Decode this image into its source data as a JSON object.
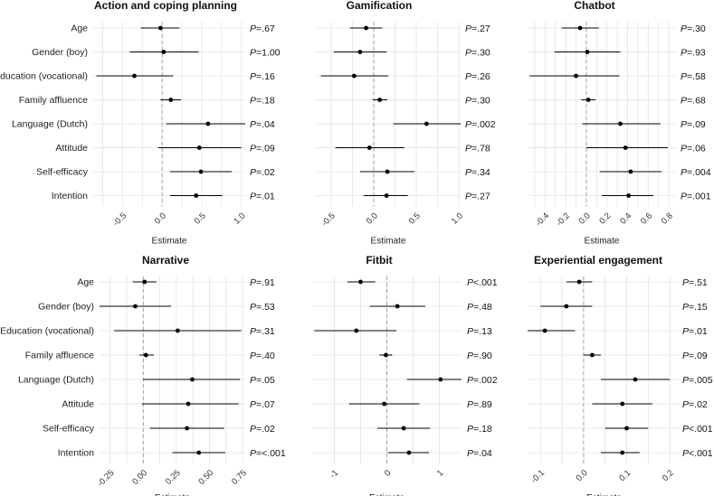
{
  "chart_data": [
    {
      "type": "forest",
      "title": "Action and coping planning",
      "xlabel": "Estimate",
      "xlim": [
        -0.87,
        1.05
      ],
      "xticks": [
        -0.5,
        0.0,
        0.5,
        1.0
      ],
      "xtick_labels": [
        "-0.5",
        "0.0",
        "0.5",
        "1.0"
      ],
      "rows": [
        {
          "label": "Age",
          "estimate": -0.02,
          "lower": -0.27,
          "upper": 0.22,
          "p": "P=.67"
        },
        {
          "label": "Gender (boy)",
          "estimate": 0.02,
          "lower": -0.41,
          "upper": 0.46,
          "p": "P=1.00"
        },
        {
          "label": "Education (vocational)",
          "estimate": -0.35,
          "lower": -0.83,
          "upper": 0.14,
          "p": "P=.16"
        },
        {
          "label": "Family affluence",
          "estimate": 0.11,
          "lower": -0.02,
          "upper": 0.24,
          "p": "P=.18"
        },
        {
          "label": "Language (Dutch)",
          "estimate": 0.58,
          "lower": 0.05,
          "upper": 1.1,
          "p": "P=.04"
        },
        {
          "label": "Attitude",
          "estimate": 0.47,
          "lower": -0.05,
          "upper": 1.0,
          "p": "P=.09"
        },
        {
          "label": "Self-efficacy",
          "estimate": 0.49,
          "lower": 0.1,
          "upper": 0.88,
          "p": "P=.02"
        },
        {
          "label": "Intention",
          "estimate": 0.43,
          "lower": 0.1,
          "upper": 0.76,
          "p": "P=.01"
        }
      ]
    },
    {
      "type": "forest",
      "title": "Gamification",
      "xlabel": "Estimate",
      "xlim": [
        -0.68,
        1.02
      ],
      "xticks": [
        -0.5,
        0.0,
        0.5,
        1.0
      ],
      "xtick_labels": [
        "-0.5",
        "0.0",
        "0.5",
        "1.0"
      ],
      "rows": [
        {
          "label": "Age",
          "estimate": -0.09,
          "lower": -0.28,
          "upper": 0.1,
          "p": "P=.27"
        },
        {
          "label": "Gender (boy)",
          "estimate": -0.16,
          "lower": -0.47,
          "upper": 0.15,
          "p": "P=.30"
        },
        {
          "label": "Education (vocational)",
          "estimate": -0.23,
          "lower": -0.62,
          "upper": 0.17,
          "p": "P=.26"
        },
        {
          "label": "Family affluence",
          "estimate": 0.07,
          "lower": -0.01,
          "upper": 0.16,
          "p": "P=.30"
        },
        {
          "label": "Language (Dutch)",
          "estimate": 0.62,
          "lower": 0.23,
          "upper": 1.02,
          "p": "P=.002"
        },
        {
          "label": "Attitude",
          "estimate": -0.05,
          "lower": -0.45,
          "upper": 0.36,
          "p": "P=.78"
        },
        {
          "label": "Self-efficacy",
          "estimate": 0.16,
          "lower": -0.16,
          "upper": 0.48,
          "p": "P=.34"
        },
        {
          "label": "Intention",
          "estimate": 0.15,
          "lower": -0.12,
          "upper": 0.4,
          "p": "P=.27"
        }
      ]
    },
    {
      "type": "forest",
      "title": "Chatbot",
      "xlabel": "Estimate",
      "xlim": [
        -0.57,
        0.87
      ],
      "xticks": [
        -0.4,
        -0.2,
        0.0,
        0.2,
        0.4,
        0.6,
        0.8
      ],
      "xtick_labels": [
        "-0.4",
        "-0.2",
        "0.0",
        "0.2",
        "0.4",
        "0.6",
        "0.8"
      ],
      "rows": [
        {
          "label": "Age",
          "estimate": -0.06,
          "lower": -0.24,
          "upper": 0.12,
          "p": "P=.30"
        },
        {
          "label": "Gender (boy)",
          "estimate": 0.01,
          "lower": -0.31,
          "upper": 0.33,
          "p": "P=.93"
        },
        {
          "label": "Education (vocational)",
          "estimate": -0.1,
          "lower": -0.55,
          "upper": 0.32,
          "p": "P=.58"
        },
        {
          "label": "Family affluence",
          "estimate": 0.02,
          "lower": -0.05,
          "upper": 0.09,
          "p": "P=.68"
        },
        {
          "label": "Language (Dutch)",
          "estimate": 0.33,
          "lower": -0.04,
          "upper": 0.72,
          "p": "P=.09"
        },
        {
          "label": "Attitude",
          "estimate": 0.38,
          "lower": 0.0,
          "upper": 0.79,
          "p": "P=.06"
        },
        {
          "label": "Self-efficacy",
          "estimate": 0.43,
          "lower": 0.13,
          "upper": 0.73,
          "p": "P=.004"
        },
        {
          "label": "Intention",
          "estimate": 0.41,
          "lower": 0.15,
          "upper": 0.65,
          "p": "P=.001"
        }
      ]
    },
    {
      "type": "forest",
      "title": "Narrative",
      "xlabel": "Estimate",
      "xlim": [
        -0.33,
        0.77
      ],
      "xticks": [
        -0.25,
        0.0,
        0.25,
        0.5,
        0.75
      ],
      "xtick_labels": [
        "-0.25",
        "0.00",
        "0.25",
        "0.50",
        "0.75"
      ],
      "rows": [
        {
          "label": "Age",
          "estimate": 0.01,
          "lower": -0.08,
          "upper": 0.1,
          "p": "P=.91"
        },
        {
          "label": "Gender (boy)",
          "estimate": -0.06,
          "lower": -0.33,
          "upper": 0.21,
          "p": "P=.53"
        },
        {
          "label": "Education (vocational)",
          "estimate": 0.26,
          "lower": -0.22,
          "upper": 0.74,
          "p": "P=.31"
        },
        {
          "label": "Family affluence",
          "estimate": 0.02,
          "lower": -0.03,
          "upper": 0.08,
          "p": "P=.40"
        },
        {
          "label": "Language (Dutch)",
          "estimate": 0.37,
          "lower": 0.0,
          "upper": 0.73,
          "p": "P=.05"
        },
        {
          "label": "Attitude",
          "estimate": 0.34,
          "lower": -0.01,
          "upper": 0.72,
          "p": "P=.07"
        },
        {
          "label": "Self-efficacy",
          "estimate": 0.33,
          "lower": 0.05,
          "upper": 0.61,
          "p": "P=.02"
        },
        {
          "label": "Intention",
          "estimate": 0.42,
          "lower": 0.22,
          "upper": 0.62,
          "p": "P=<.001"
        }
      ]
    },
    {
      "type": "forest",
      "title": "Fitbit",
      "xlabel": "Estimate",
      "xlim": [
        -1.42,
        1.42
      ],
      "xticks": [
        -1,
        0,
        1
      ],
      "xtick_labels": [
        "-1",
        "0",
        "1"
      ],
      "rows": [
        {
          "label": "Age",
          "estimate": -0.5,
          "lower": -0.75,
          "upper": -0.22,
          "p": "P<.001"
        },
        {
          "label": "Gender (boy)",
          "estimate": 0.2,
          "lower": -0.32,
          "upper": 0.73,
          "p": "P=.48"
        },
        {
          "label": "Education (vocational)",
          "estimate": -0.58,
          "lower": -1.38,
          "upper": 0.18,
          "p": "P=.13"
        },
        {
          "label": "Family affluence",
          "estimate": -0.02,
          "lower": -0.14,
          "upper": 0.1,
          "p": "P=.90"
        },
        {
          "label": "Language (Dutch)",
          "estimate": 1.02,
          "lower": 0.38,
          "upper": 1.42,
          "p": "P=.002"
        },
        {
          "label": "Attitude",
          "estimate": -0.05,
          "lower": -0.72,
          "upper": 0.62,
          "p": "P=.89"
        },
        {
          "label": "Self-efficacy",
          "estimate": 0.32,
          "lower": -0.18,
          "upper": 0.82,
          "p": "P=.18"
        },
        {
          "label": "Intention",
          "estimate": 0.42,
          "lower": 0.02,
          "upper": 0.8,
          "p": "P=.04"
        }
      ]
    },
    {
      "type": "forest",
      "title": "Experiential engagement",
      "xlabel": "Estimate",
      "xlim": [
        -0.13,
        0.225
      ],
      "xticks": [
        -0.1,
        0.0,
        0.1,
        0.2
      ],
      "xtick_labels": [
        "-0.1",
        "0.0",
        "0.1",
        "0.2"
      ],
      "rows": [
        {
          "label": "",
          "estimate": -0.01,
          "lower": -0.04,
          "upper": 0.02,
          "p": "P=.51"
        },
        {
          "label": "",
          "estimate": -0.04,
          "lower": -0.1,
          "upper": 0.02,
          "p": "P=.15"
        },
        {
          "label": "",
          "estimate": -0.09,
          "lower": -0.16,
          "upper": -0.02,
          "p": "P=.01"
        },
        {
          "label": "",
          "estimate": 0.02,
          "lower": 0.0,
          "upper": 0.04,
          "p": "P=.09"
        },
        {
          "label": "",
          "estimate": 0.12,
          "lower": 0.04,
          "upper": 0.2,
          "p": "P=.005"
        },
        {
          "label": "",
          "estimate": 0.09,
          "lower": 0.02,
          "upper": 0.16,
          "p": "P=.02"
        },
        {
          "label": "",
          "estimate": 0.1,
          "lower": 0.05,
          "upper": 0.15,
          "p": "P<.001"
        },
        {
          "label": "",
          "estimate": 0.09,
          "lower": 0.04,
          "upper": 0.13,
          "p": "P<.001"
        }
      ]
    }
  ]
}
